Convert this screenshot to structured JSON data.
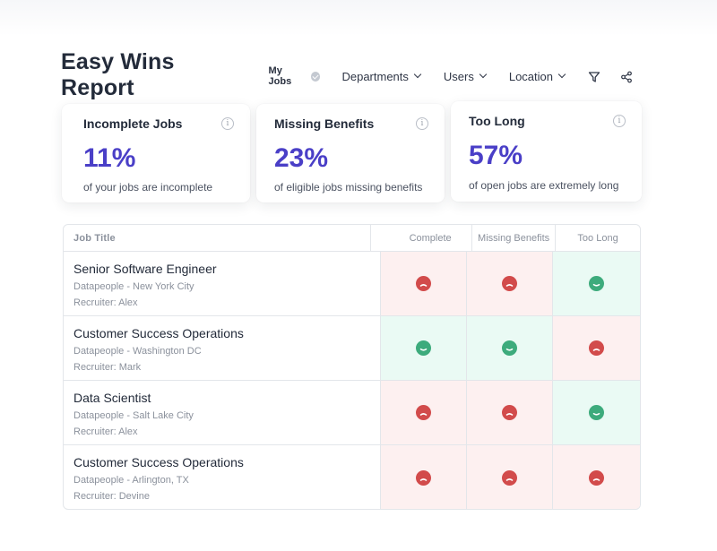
{
  "header": {
    "title": "Easy Wins Report",
    "my_jobs": "My Jobs",
    "departments": "Departments",
    "users": "Users",
    "location": "Location"
  },
  "cards": [
    {
      "title": "Incomplete Jobs",
      "value": "11%",
      "subtitle": "of your jobs are incomplete"
    },
    {
      "title": "Missing Benefits",
      "value": "23%",
      "subtitle": "of eligible jobs missing benefits"
    },
    {
      "title": "Too Long",
      "value": "57%",
      "subtitle": "of open jobs are extremely long"
    }
  ],
  "table": {
    "columns": [
      "Job Title",
      "Complete",
      "Missing Benefits",
      "Too Long"
    ],
    "rows": [
      {
        "title": "Senior Software Engineer",
        "location": "Datapeople - New York City",
        "recruiter": "Recruiter: Alex",
        "status": [
          "bad",
          "bad",
          "good"
        ]
      },
      {
        "title": "Customer Success Operations",
        "location": "Datapeople - Washington DC",
        "recruiter": "Recruiter: Mark",
        "status": [
          "good",
          "good",
          "bad"
        ]
      },
      {
        "title": "Data Scientist",
        "location": "Datapeople - Salt Lake City",
        "recruiter": "Recruiter: Alex",
        "status": [
          "bad",
          "bad",
          "good"
        ]
      },
      {
        "title": "Customer Success Operations",
        "location": "Datapeople - Arlington, TX",
        "recruiter": "Recruiter: Devine",
        "status": [
          "bad",
          "bad",
          "bad"
        ]
      }
    ]
  },
  "colors": {
    "accent": "#4a3fc7",
    "good": "#3dab7c",
    "bad": "#d24b4b"
  }
}
